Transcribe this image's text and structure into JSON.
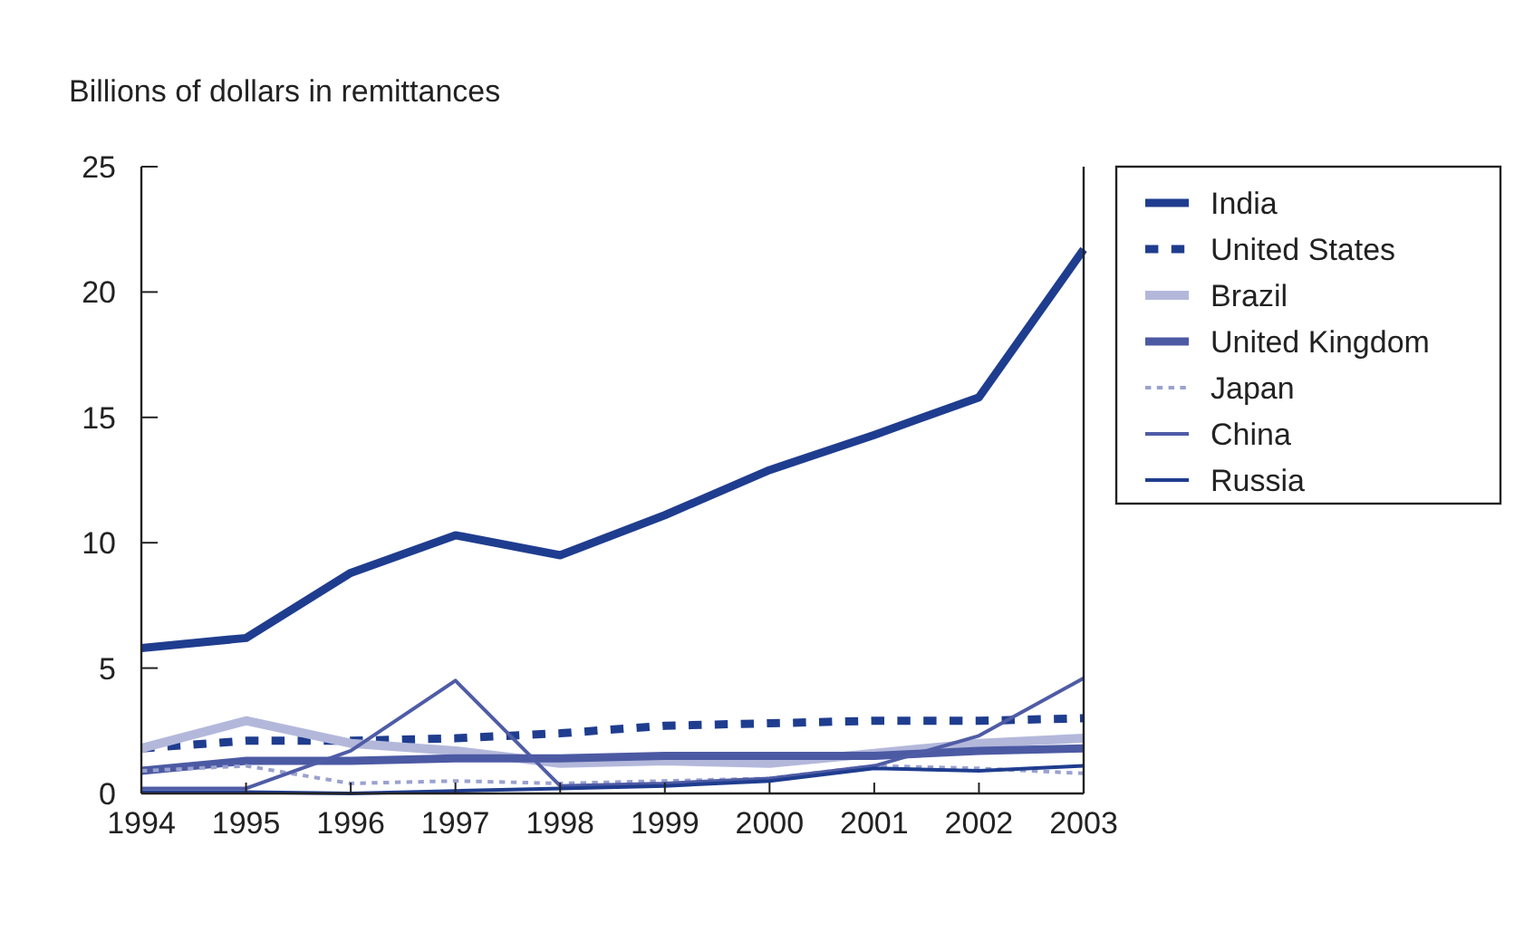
{
  "chart_data": {
    "type": "line",
    "ylabel": "Billions of dollars in remittances",
    "x": [
      1994,
      1995,
      1996,
      1997,
      1998,
      1999,
      2000,
      2001,
      2002,
      2003
    ],
    "xlim": [
      1994,
      2003
    ],
    "xticks": [
      1994,
      1995,
      1996,
      1997,
      1998,
      1999,
      2000,
      2001,
      2002,
      2003
    ],
    "ylim": [
      0,
      25
    ],
    "yticks": [
      0,
      5,
      10,
      15,
      20,
      25
    ],
    "grid": false,
    "legend": "right",
    "marker": "none",
    "series": [
      {
        "name": "India",
        "color": "#1f3d8f",
        "line_style": "solid",
        "values": [
          5.8,
          6.2,
          8.8,
          10.3,
          9.5,
          11.1,
          12.9,
          14.3,
          15.8,
          21.7
        ]
      },
      {
        "name": "United States",
        "color": "#1f3d8f",
        "line_style": "dashed",
        "values": [
          1.8,
          2.1,
          2.1,
          2.2,
          2.4,
          2.7,
          2.8,
          2.9,
          2.9,
          3.0
        ]
      },
      {
        "name": "Brazil",
        "color": "#b3b8db",
        "line_style": "solid",
        "values": [
          1.8,
          2.9,
          2.0,
          1.7,
          1.2,
          1.3,
          1.2,
          1.6,
          2.0,
          2.2
        ]
      },
      {
        "name": "United Kingdom",
        "color": "#4c5aa3",
        "line_style": "solid",
        "values": [
          0.9,
          1.3,
          1.3,
          1.4,
          1.4,
          1.5,
          1.5,
          1.5,
          1.7,
          1.8
        ]
      },
      {
        "name": "Japan",
        "color": "#9aa2cf",
        "line_style": "dashed",
        "values": [
          0.9,
          1.1,
          0.4,
          0.5,
          0.4,
          0.5,
          0.6,
          1.1,
          1.0,
          0.8
        ]
      },
      {
        "name": "China",
        "color": "#4f5ca6",
        "line_style": "solid",
        "values": [
          0.2,
          0.2,
          1.7,
          4.5,
          0.3,
          0.4,
          0.6,
          1.1,
          2.3,
          4.6
        ]
      },
      {
        "name": "Russia",
        "color": "#1f3d8f",
        "line_style": "solid",
        "values": [
          0.05,
          0.05,
          0,
          0.1,
          0.2,
          0.3,
          0.5,
          1.0,
          0.9,
          1.1
        ]
      }
    ]
  }
}
